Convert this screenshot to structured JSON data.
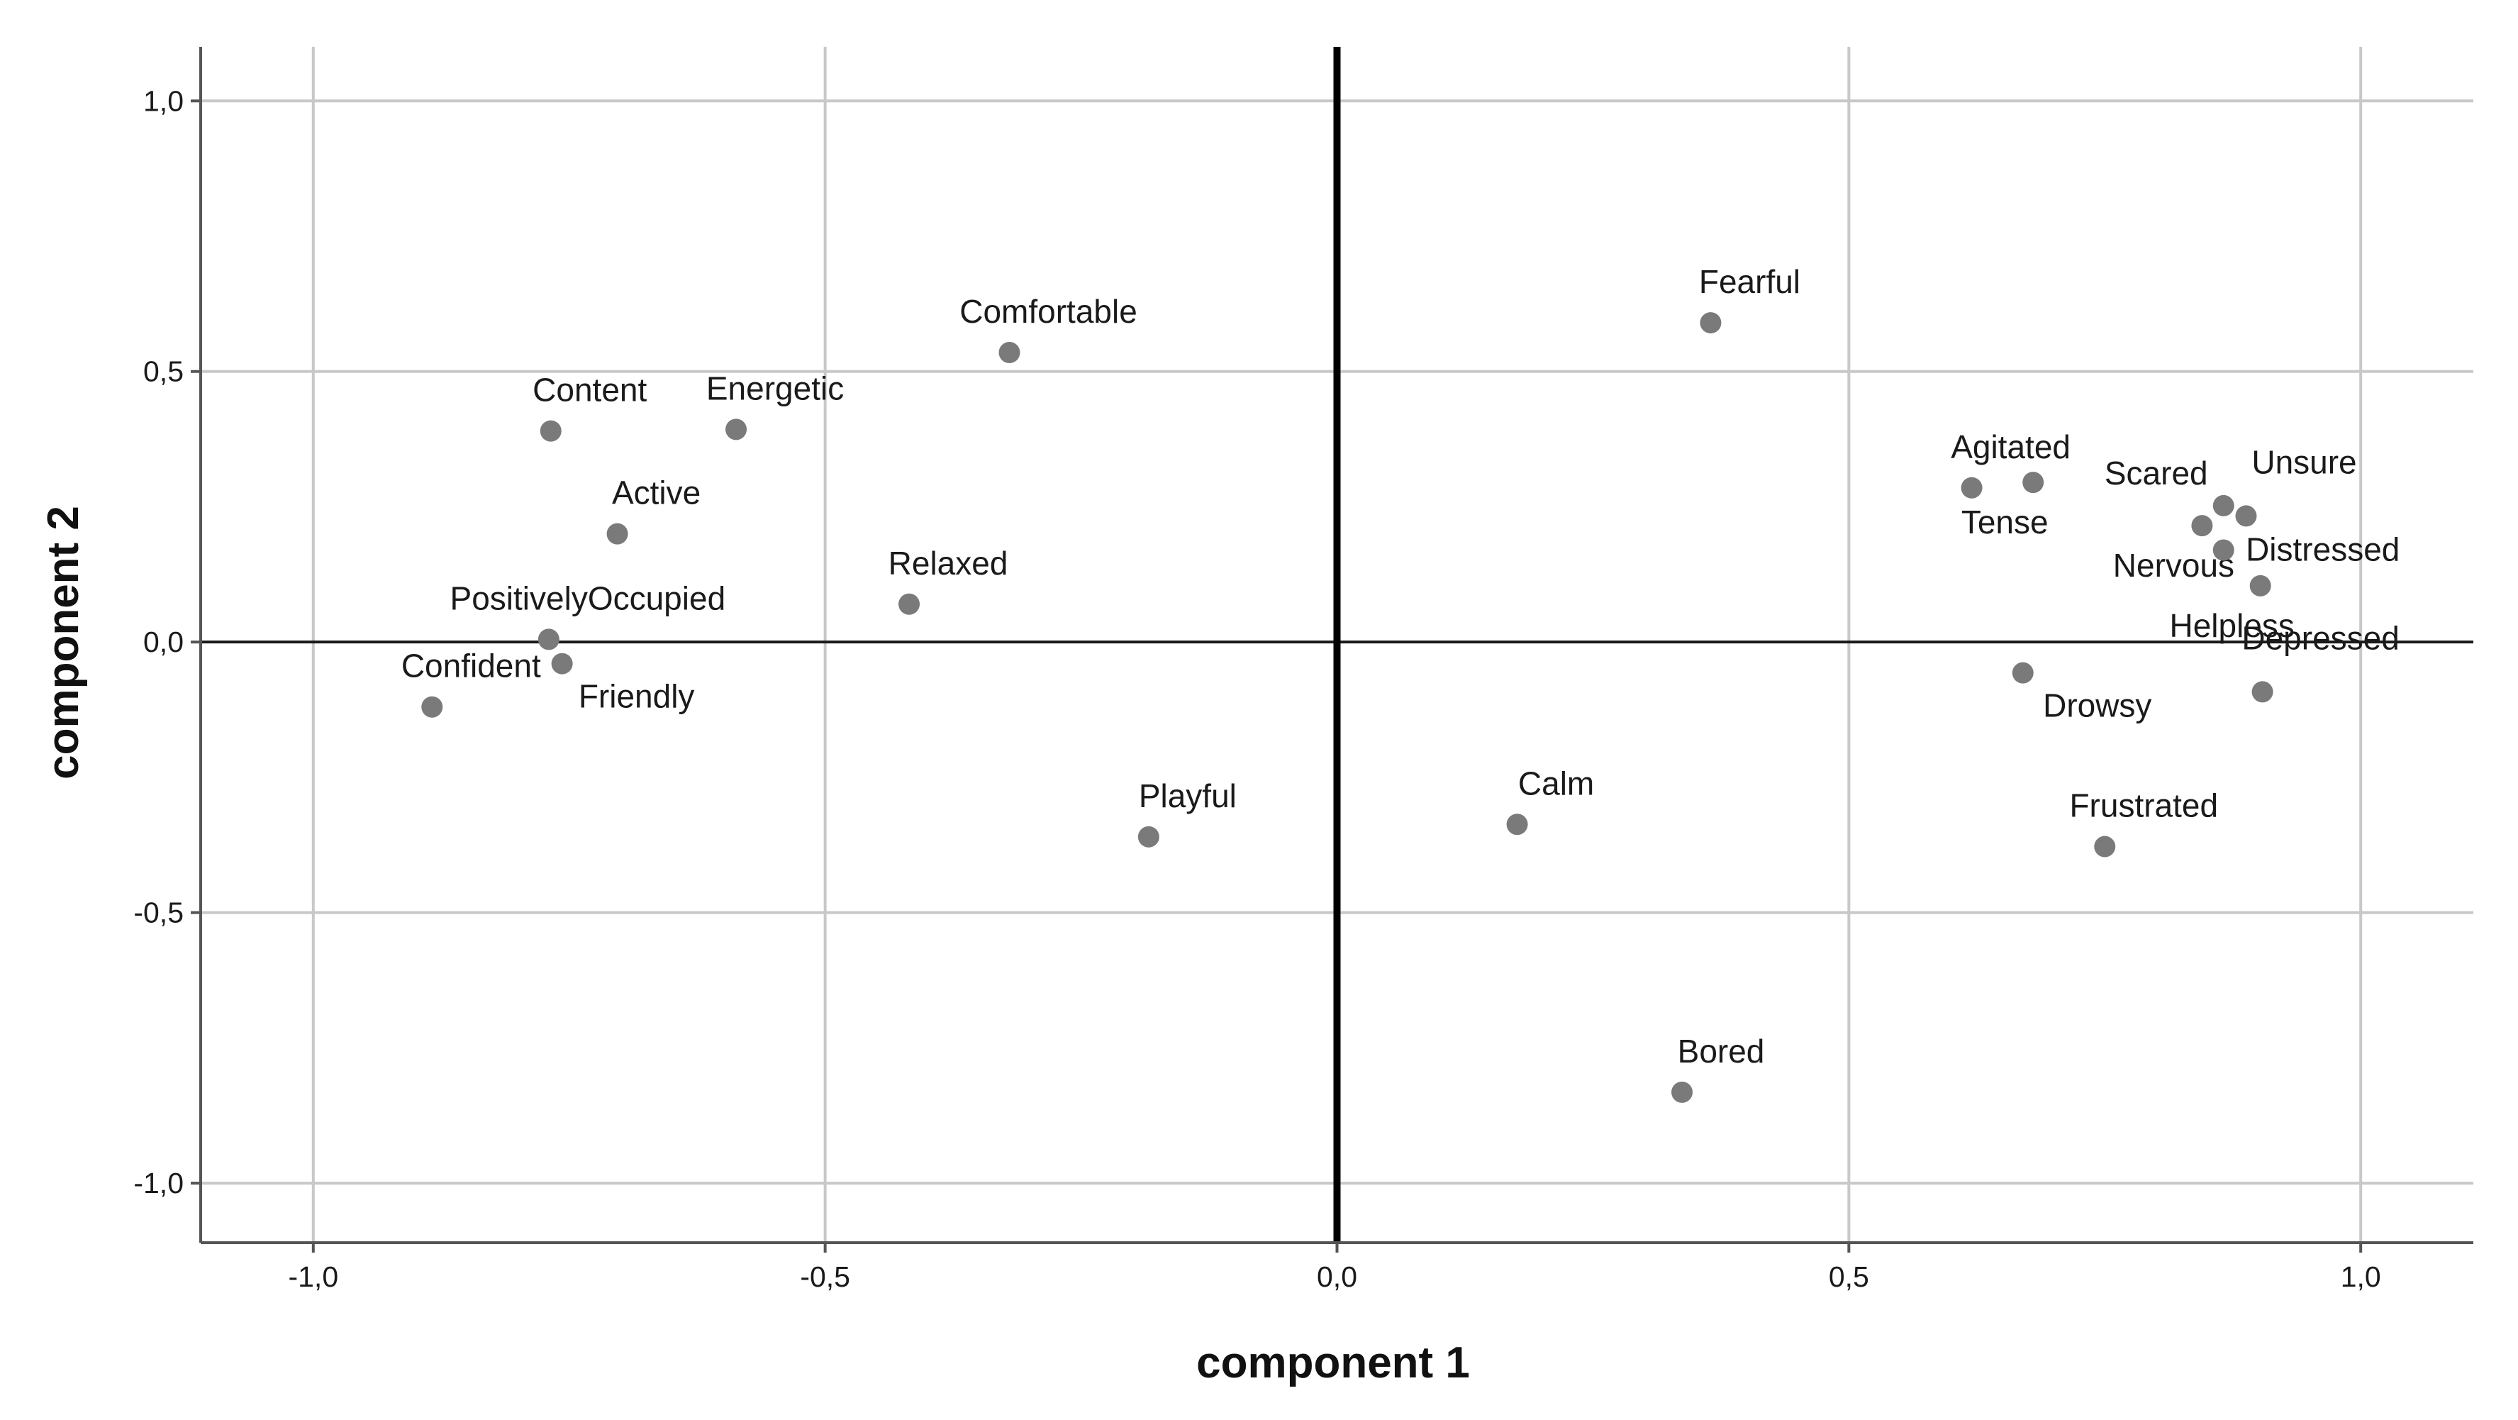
{
  "chart_data": {
    "type": "scatter",
    "title": "",
    "xlabel": "component 1",
    "ylabel": "component 2",
    "xlim": [
      -1.11,
      1.11
    ],
    "ylim": [
      -1.11,
      1.1
    ],
    "x_ticks": [
      -1.0,
      -0.5,
      0.0,
      0.5,
      1.0
    ],
    "y_ticks": [
      -1.0,
      -0.5,
      0.0,
      0.5,
      1.0
    ],
    "x_tick_labels": [
      "-1,0",
      "-0,5",
      "0,0",
      "0,5",
      "1,0"
    ],
    "y_tick_labels": [
      "-1,0",
      "-0,5",
      "0,0",
      "0,5",
      "1,0"
    ],
    "grid": true,
    "point_color": "#7a7a7a",
    "points": [
      {
        "label": "Fearful",
        "x": 0.365,
        "y": 0.59,
        "label_pos": "above"
      },
      {
        "label": "Comfortable",
        "x": -0.32,
        "y": 0.535,
        "label_pos": "above"
      },
      {
        "label": "Content",
        "x": -0.768,
        "y": 0.39,
        "label_pos": "above"
      },
      {
        "label": "Energetic",
        "x": -0.587,
        "y": 0.393,
        "label_pos": "above"
      },
      {
        "label": "Active",
        "x": -0.703,
        "y": 0.2,
        "label_pos": "above"
      },
      {
        "label": "Relaxed",
        "x": -0.418,
        "y": 0.07,
        "label_pos": "above"
      },
      {
        "label": "PositivelyOccupied",
        "x": -0.77,
        "y": 0.005,
        "label_pos": "above"
      },
      {
        "label": "Confident",
        "x": -0.884,
        "y": -0.12,
        "label_pos": "above"
      },
      {
        "label": "Friendly",
        "x": -0.757,
        "y": -0.04,
        "label_pos": "below"
      },
      {
        "label": "Playful",
        "x": -0.184,
        "y": -0.36,
        "label_pos": "above"
      },
      {
        "label": "Calm",
        "x": 0.176,
        "y": -0.337,
        "label_pos": "above"
      },
      {
        "label": "Bored",
        "x": 0.337,
        "y": -0.832,
        "label_pos": "above"
      },
      {
        "label": "Agitated",
        "x": 0.62,
        "y": 0.285,
        "label_pos": "above"
      },
      {
        "label": "Tense",
        "x": 0.68,
        "y": 0.295,
        "label_pos": "below-left"
      },
      {
        "label": "Scared",
        "x": 0.866,
        "y": 0.252,
        "label_pos": "above-left"
      },
      {
        "label": "Unsure",
        "x": 0.888,
        "y": 0.233,
        "label_pos": "above-right"
      },
      {
        "label": "Nervous",
        "x": 0.845,
        "y": 0.215,
        "label_pos": "below-left"
      },
      {
        "label": "Distressed",
        "x": 0.866,
        "y": 0.17,
        "label_pos": "right"
      },
      {
        "label": "Helpless",
        "x": 0.902,
        "y": 0.104,
        "label_pos": "below-left"
      },
      {
        "label": "Drowsy",
        "x": 0.67,
        "y": -0.057,
        "label_pos": "below"
      },
      {
        "label": "Depressed",
        "x": 0.904,
        "y": -0.092,
        "label_pos": "above-right"
      },
      {
        "label": "Frustrated",
        "x": 0.75,
        "y": -0.378,
        "label_pos": "above"
      }
    ]
  }
}
